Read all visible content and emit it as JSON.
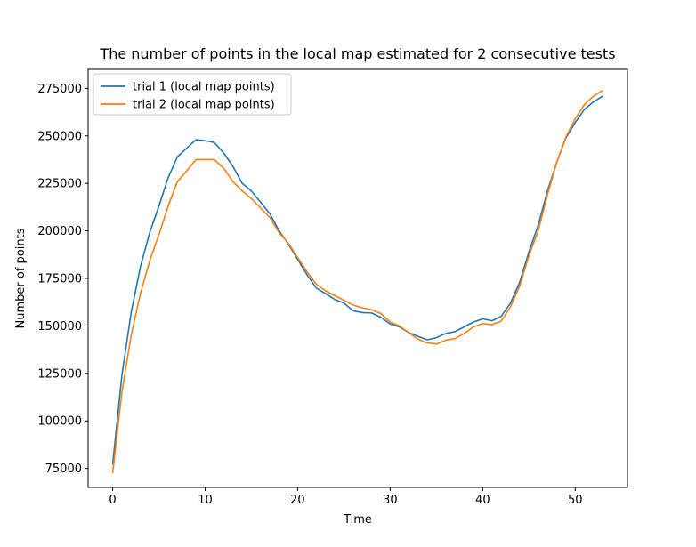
{
  "chart_data": {
    "type": "line",
    "title": "The number of points in the local map estimated for 2 consecutive tests",
    "xlabel": "Time",
    "ylabel": "Number of points",
    "xlim": [
      -2.65,
      55.65
    ],
    "ylim": [
      65000,
      285000
    ],
    "xticks": [
      0,
      10,
      20,
      30,
      40,
      50
    ],
    "yticks": [
      75000,
      100000,
      125000,
      150000,
      175000,
      200000,
      225000,
      250000,
      275000
    ],
    "legend_position": "upper-left",
    "grid": false,
    "x": [
      0,
      1,
      2,
      3,
      4,
      5,
      6,
      7,
      8,
      9,
      10,
      11,
      12,
      13,
      14,
      15,
      16,
      17,
      18,
      19,
      20,
      21,
      22,
      23,
      24,
      25,
      26,
      27,
      28,
      29,
      30,
      31,
      32,
      33,
      34,
      35,
      36,
      37,
      38,
      39,
      40,
      41,
      42,
      43,
      44,
      45,
      46,
      47,
      48,
      49,
      50,
      51,
      52,
      53
    ],
    "series": [
      {
        "name": "trial 1 (local map points)",
        "color": "#1f77b4",
        "values": [
          77000,
          124000,
          157000,
          181000,
          199000,
          213000,
          228000,
          239000,
          243500,
          248000,
          247500,
          246500,
          241000,
          234000,
          225000,
          221000,
          215000,
          209000,
          200000,
          193000,
          185000,
          177000,
          170000,
          167000,
          164000,
          162000,
          158000,
          157000,
          156800,
          154500,
          151000,
          149500,
          146500,
          144500,
          142700,
          143800,
          146000,
          147000,
          149500,
          152000,
          153700,
          152700,
          155000,
          162000,
          173000,
          189000,
          203000,
          221000,
          236000,
          249000,
          257000,
          264000,
          268000,
          271000
        ]
      },
      {
        "name": "trial 2 (local map points)",
        "color": "#ff7f0e",
        "values": [
          72500,
          115000,
          145000,
          167000,
          184000,
          198000,
          213000,
          226000,
          231500,
          237500,
          237500,
          237500,
          233000,
          226000,
          221000,
          217000,
          212000,
          207000,
          199000,
          193500,
          186000,
          178500,
          172000,
          168500,
          166000,
          163500,
          161000,
          159500,
          158500,
          156500,
          152000,
          150000,
          146500,
          143000,
          141000,
          140500,
          142500,
          143300,
          146000,
          149500,
          151200,
          150700,
          152500,
          160000,
          171000,
          187000,
          200000,
          219000,
          236000,
          249500,
          259000,
          266500,
          271000,
          274000
        ]
      }
    ]
  }
}
